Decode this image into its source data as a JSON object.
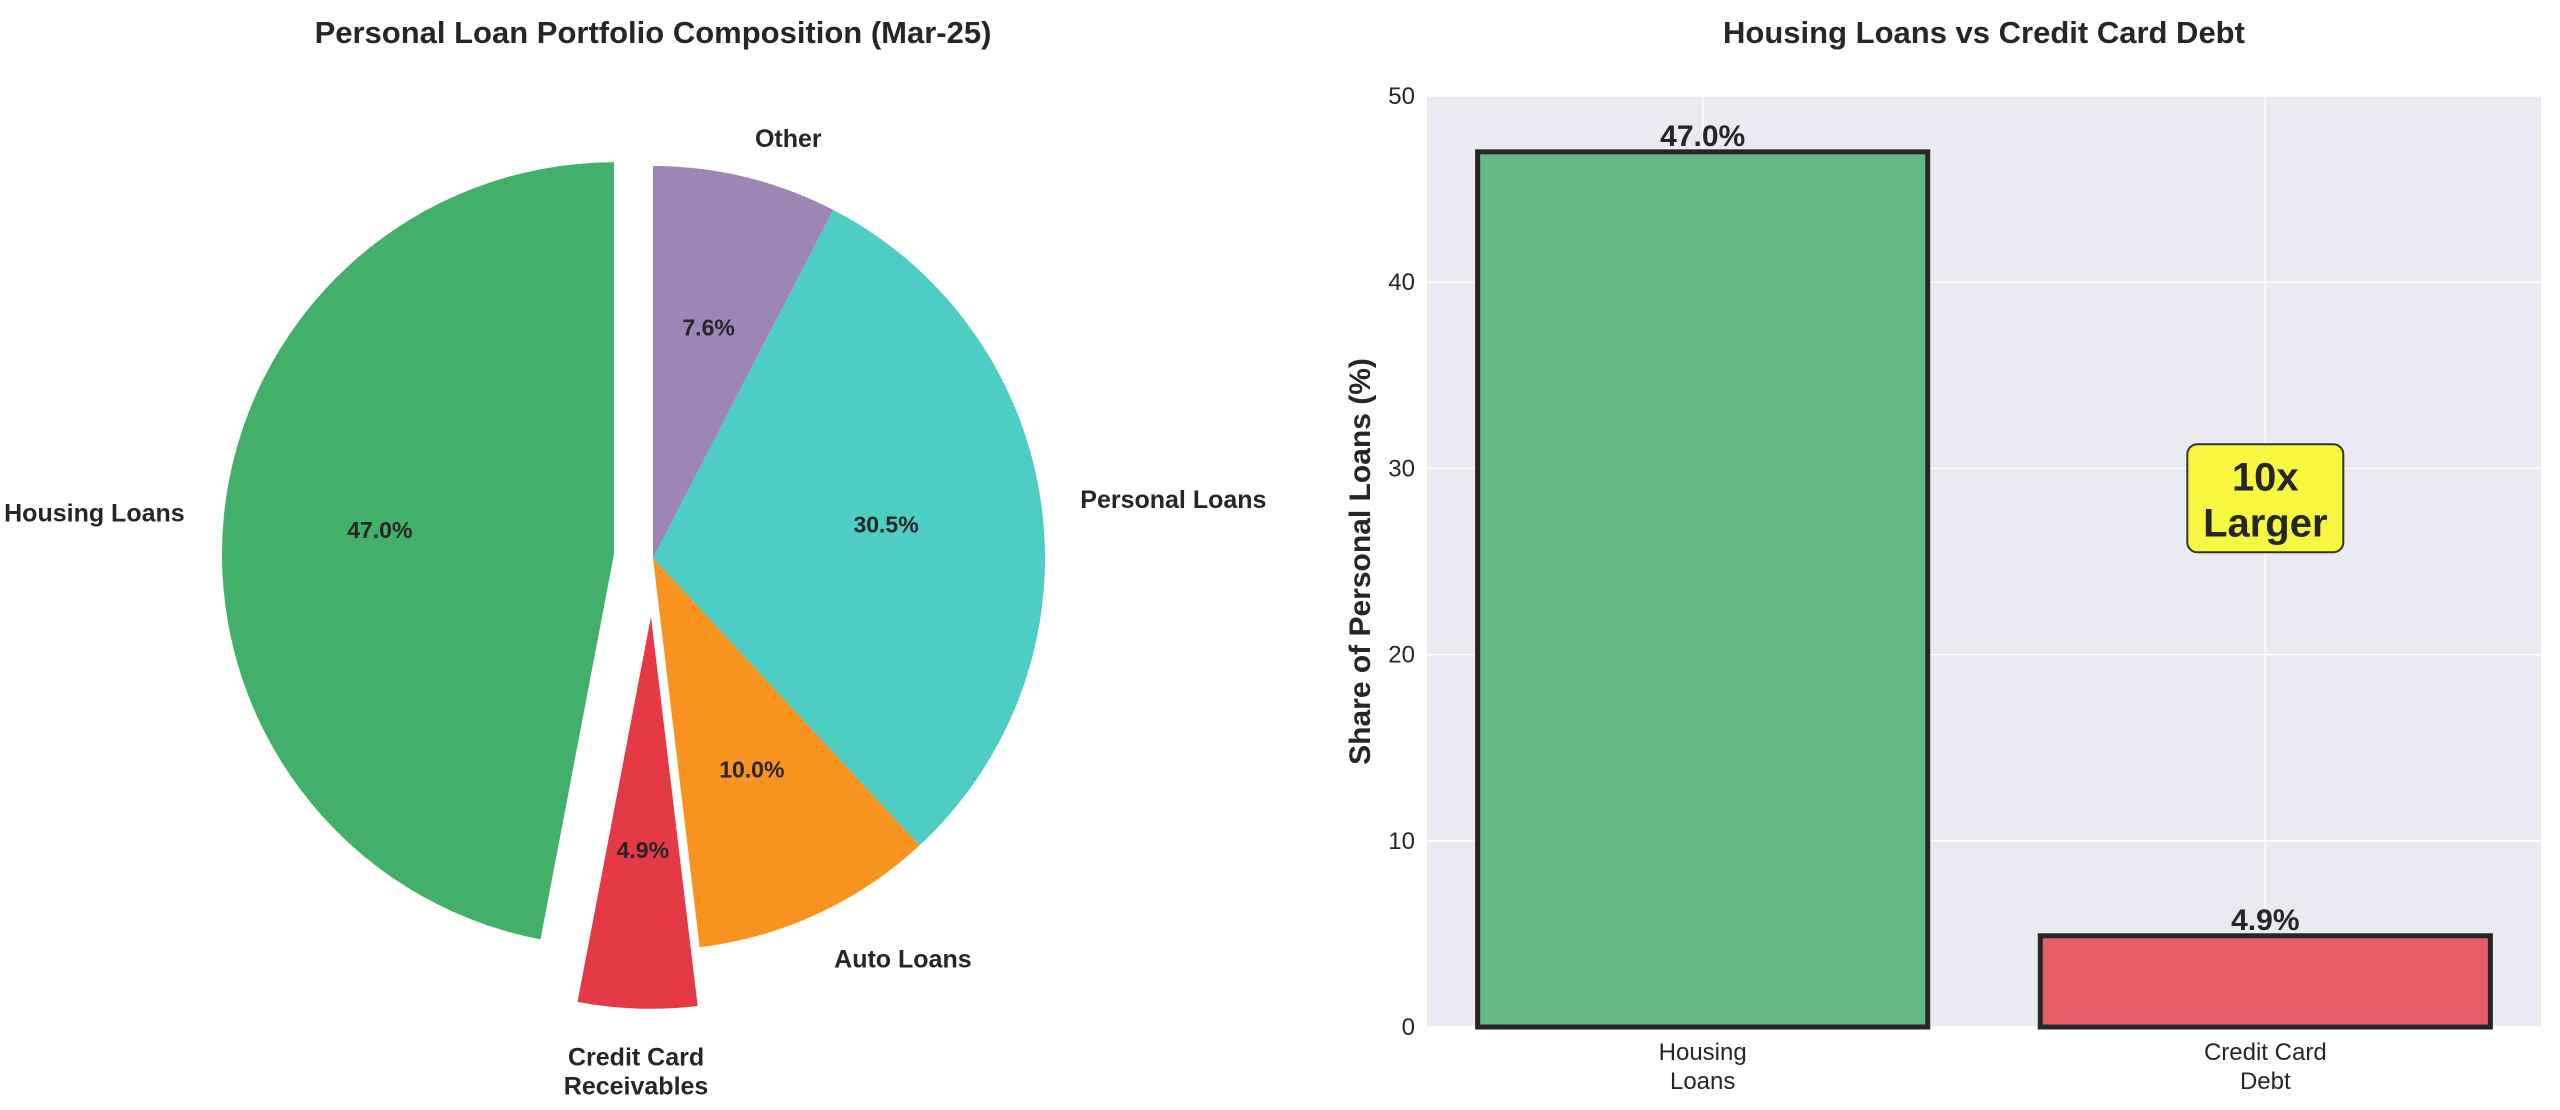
{
  "chart_data": [
    {
      "type": "pie",
      "title": "Personal Loan Portfolio Composition (Mar-25)",
      "labels": [
        "Housing Loans",
        "Credit Card\nReceivables",
        "Auto Loans",
        "Personal Loans",
        "Other"
      ],
      "values": [
        47.0,
        4.9,
        10.0,
        30.5,
        7.6
      ],
      "pct_labels": [
        "47.0%",
        "4.9%",
        "10.0%",
        "30.5%",
        "7.6%"
      ],
      "colors": [
        "#43b06a",
        "#e63946",
        "#f7931e",
        "#4ecdc4",
        "#9d85b6"
      ],
      "explode": [
        0.1,
        0.15,
        0,
        0,
        0
      ],
      "start_angle": 90,
      "direction": "counterclockwise"
    },
    {
      "type": "bar",
      "title": "Housing Loans vs Credit Card Debt",
      "categories": [
        "Housing\nLoans",
        "Credit Card\nDebt"
      ],
      "values": [
        47.0,
        4.9
      ],
      "data_labels": [
        "47.0%",
        "4.9%"
      ],
      "colors": [
        "#65ba83",
        "#e85c68"
      ],
      "xlabel": "",
      "ylabel": "Share of Personal Loans (%)",
      "ylim": [
        0,
        50
      ],
      "yticks": [
        0,
        10,
        20,
        30,
        40,
        50
      ],
      "grid": true,
      "background": "#eaeaf2",
      "annotation": {
        "text": "10x\nLarger",
        "x": 1,
        "y": 27,
        "box_color": "#f7f741"
      }
    }
  ]
}
